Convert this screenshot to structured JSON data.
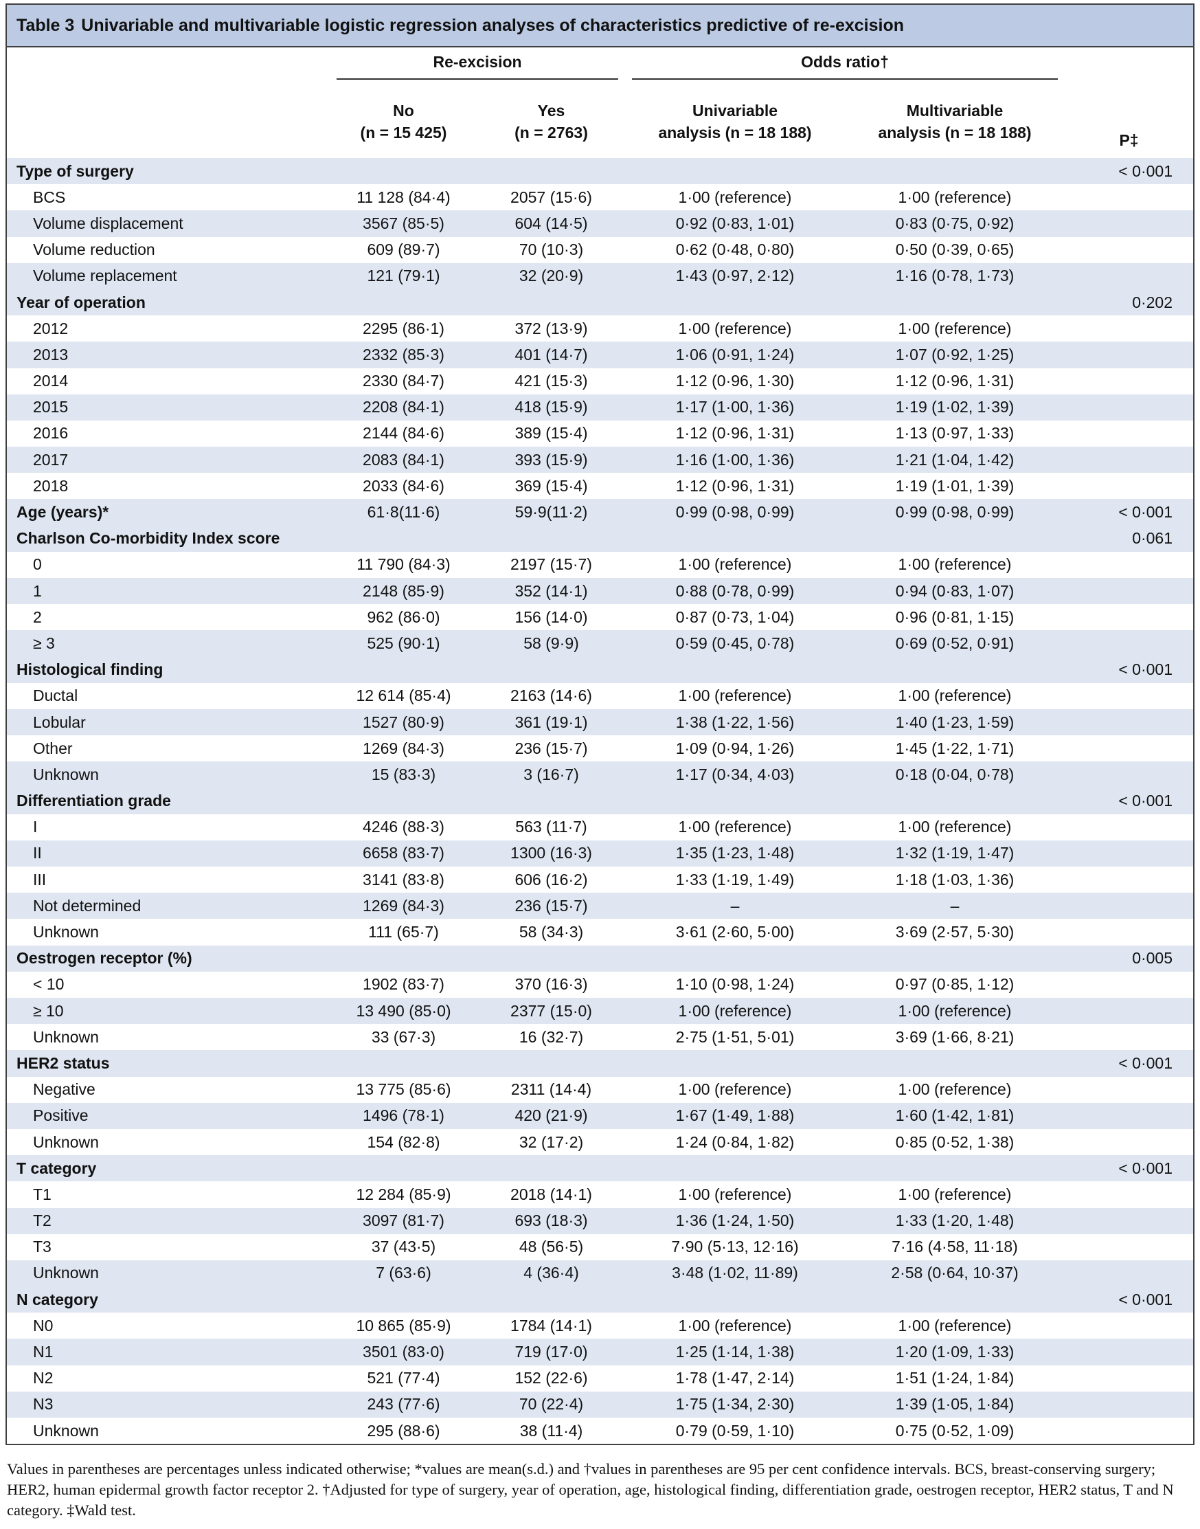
{
  "table": {
    "label": "Table 3",
    "title": "Univariable and multivariable logistic regression analyses of characteristics predictive of re-excision",
    "header": {
      "group1": "Re-excision",
      "group2": "Odds ratio†",
      "col_no": "No",
      "col_no_n": "(n = 15 425)",
      "col_yes": "Yes",
      "col_yes_n": "(n = 2763)",
      "col_uni": "Univariable",
      "col_uni_n": "analysis (n = 18 188)",
      "col_multi": "Multivariable",
      "col_multi_n": "analysis (n = 18 188)",
      "col_p": "P‡"
    },
    "rows": [
      {
        "type": "cat",
        "label": "Type of surgery",
        "no": "",
        "yes": "",
        "uni": "",
        "multi": "",
        "p": "< 0·001"
      },
      {
        "type": "item",
        "label": "BCS",
        "no": "11 128 (84·4)",
        "yes": "2057 (15·6)",
        "uni": "1·00 (reference)",
        "multi": "1·00 (reference)",
        "p": ""
      },
      {
        "type": "item",
        "label": "Volume displacement",
        "no": "3567 (85·5)",
        "yes": "604 (14·5)",
        "uni": "0·92 (0·83, 1·01)",
        "multi": "0·83 (0·75, 0·92)",
        "p": ""
      },
      {
        "type": "item",
        "label": "Volume reduction",
        "no": "609 (89·7)",
        "yes": "70 (10·3)",
        "uni": "0·62 (0·48, 0·80)",
        "multi": "0·50 (0·39, 0·65)",
        "p": ""
      },
      {
        "type": "item",
        "label": "Volume replacement",
        "no": "121 (79·1)",
        "yes": "32 (20·9)",
        "uni": "1·43 (0·97, 2·12)",
        "multi": "1·16 (0·78, 1·73)",
        "p": ""
      },
      {
        "type": "cat",
        "label": "Year of operation",
        "no": "",
        "yes": "",
        "uni": "",
        "multi": "",
        "p": "0·202"
      },
      {
        "type": "item",
        "label": "2012",
        "no": "2295 (86·1)",
        "yes": "372 (13·9)",
        "uni": "1·00 (reference)",
        "multi": "1·00 (reference)",
        "p": ""
      },
      {
        "type": "item",
        "label": "2013",
        "no": "2332 (85·3)",
        "yes": "401 (14·7)",
        "uni": "1·06 (0·91, 1·24)",
        "multi": "1·07 (0·92, 1·25)",
        "p": ""
      },
      {
        "type": "item",
        "label": "2014",
        "no": "2330 (84·7)",
        "yes": "421 (15·3)",
        "uni": "1·12 (0·96, 1·30)",
        "multi": "1·12 (0·96, 1·31)",
        "p": ""
      },
      {
        "type": "item",
        "label": "2015",
        "no": "2208 (84·1)",
        "yes": "418 (15·9)",
        "uni": "1·17 (1·00, 1·36)",
        "multi": "1·19 (1·02, 1·39)",
        "p": ""
      },
      {
        "type": "item",
        "label": "2016",
        "no": "2144 (84·6)",
        "yes": "389 (15·4)",
        "uni": "1·12 (0·96, 1·31)",
        "multi": "1·13 (0·97, 1·33)",
        "p": ""
      },
      {
        "type": "item",
        "label": "2017",
        "no": "2083 (84·1)",
        "yes": "393 (15·9)",
        "uni": "1·16 (1·00, 1·36)",
        "multi": "1·21 (1·04, 1·42)",
        "p": ""
      },
      {
        "type": "item",
        "label": "2018",
        "no": "2033 (84·6)",
        "yes": "369 (15·4)",
        "uni": "1·12 (0·96, 1·31)",
        "multi": "1·19 (1·01, 1·39)",
        "p": ""
      },
      {
        "type": "cat",
        "label": "Age (years)*",
        "no": "61·8(11·6)",
        "yes": "59·9(11·2)",
        "uni": "0·99 (0·98, 0·99)",
        "multi": "0·99 (0·98, 0·99)",
        "p": "< 0·001"
      },
      {
        "type": "cat",
        "label": "Charlson Co-morbidity Index score",
        "no": "",
        "yes": "",
        "uni": "",
        "multi": "",
        "p": "0·061"
      },
      {
        "type": "item",
        "label": "0",
        "no": "11 790 (84·3)",
        "yes": "2197 (15·7)",
        "uni": "1·00 (reference)",
        "multi": "1·00 (reference)",
        "p": ""
      },
      {
        "type": "item",
        "label": "1",
        "no": "2148 (85·9)",
        "yes": "352 (14·1)",
        "uni": "0·88 (0·78, 0·99)",
        "multi": "0·94 (0·83, 1·07)",
        "p": ""
      },
      {
        "type": "item",
        "label": "2",
        "no": "962 (86·0)",
        "yes": "156 (14·0)",
        "uni": "0·87 (0·73, 1·04)",
        "multi": "0·96 (0·81, 1·15)",
        "p": ""
      },
      {
        "type": "item",
        "label": "≥ 3",
        "no": "525 (90·1)",
        "yes": "58 (9·9)",
        "uni": "0·59 (0·45, 0·78)",
        "multi": "0·69 (0·52, 0·91)",
        "p": ""
      },
      {
        "type": "cat",
        "label": "Histological finding",
        "no": "",
        "yes": "",
        "uni": "",
        "multi": "",
        "p": "< 0·001"
      },
      {
        "type": "item",
        "label": "Ductal",
        "no": "12 614 (85·4)",
        "yes": "2163 (14·6)",
        "uni": "1·00 (reference)",
        "multi": "1·00 (reference)",
        "p": ""
      },
      {
        "type": "item",
        "label": "Lobular",
        "no": "1527 (80·9)",
        "yes": "361 (19·1)",
        "uni": "1·38 (1·22, 1·56)",
        "multi": "1·40 (1·23, 1·59)",
        "p": ""
      },
      {
        "type": "item",
        "label": "Other",
        "no": "1269 (84·3)",
        "yes": "236 (15·7)",
        "uni": "1·09 (0·94, 1·26)",
        "multi": "1·45 (1·22, 1·71)",
        "p": ""
      },
      {
        "type": "item",
        "label": "Unknown",
        "no": "15 (83·3)",
        "yes": "3 (16·7)",
        "uni": "1·17 (0·34, 4·03)",
        "multi": "0·18 (0·04, 0·78)",
        "p": ""
      },
      {
        "type": "cat",
        "label": "Differentiation grade",
        "no": "",
        "yes": "",
        "uni": "",
        "multi": "",
        "p": "< 0·001"
      },
      {
        "type": "item",
        "label": "I",
        "no": "4246 (88·3)",
        "yes": "563 (11·7)",
        "uni": "1·00 (reference)",
        "multi": "1·00 (reference)",
        "p": ""
      },
      {
        "type": "item",
        "label": "II",
        "no": "6658 (83·7)",
        "yes": "1300 (16·3)",
        "uni": "1·35 (1·23, 1·48)",
        "multi": "1·32 (1·19, 1·47)",
        "p": ""
      },
      {
        "type": "item",
        "label": "III",
        "no": "3141 (83·8)",
        "yes": "606 (16·2)",
        "uni": "1·33 (1·19, 1·49)",
        "multi": "1·18 (1·03, 1·36)",
        "p": ""
      },
      {
        "type": "item",
        "label": "Not determined",
        "no": "1269 (84·3)",
        "yes": "236 (15·7)",
        "uni": "–",
        "multi": "–",
        "p": ""
      },
      {
        "type": "item",
        "label": "Unknown",
        "no": "111 (65·7)",
        "yes": "58 (34·3)",
        "uni": "3·61 (2·60, 5·00)",
        "multi": "3·69 (2·57, 5·30)",
        "p": ""
      },
      {
        "type": "cat",
        "label": "Oestrogen receptor (%)",
        "no": "",
        "yes": "",
        "uni": "",
        "multi": "",
        "p": "0·005"
      },
      {
        "type": "item",
        "label": "< 10",
        "no": "1902 (83·7)",
        "yes": "370 (16·3)",
        "uni": "1·10 (0·98, 1·24)",
        "multi": "0·97 (0·85, 1·12)",
        "p": ""
      },
      {
        "type": "item",
        "label": "≥ 10",
        "no": "13 490 (85·0)",
        "yes": "2377 (15·0)",
        "uni": "1·00 (reference)",
        "multi": "1·00 (reference)",
        "p": ""
      },
      {
        "type": "item",
        "label": "Unknown",
        "no": "33 (67·3)",
        "yes": "16 (32·7)",
        "uni": "2·75 (1·51, 5·01)",
        "multi": "3·69 (1·66, 8·21)",
        "p": ""
      },
      {
        "type": "cat",
        "label": "HER2 status",
        "no": "",
        "yes": "",
        "uni": "",
        "multi": "",
        "p": "< 0·001"
      },
      {
        "type": "item",
        "label": "Negative",
        "no": "13 775 (85·6)",
        "yes": "2311 (14·4)",
        "uni": "1·00 (reference)",
        "multi": "1·00 (reference)",
        "p": ""
      },
      {
        "type": "item",
        "label": "Positive",
        "no": "1496 (78·1)",
        "yes": "420 (21·9)",
        "uni": "1·67 (1·49, 1·88)",
        "multi": "1·60 (1·42, 1·81)",
        "p": ""
      },
      {
        "type": "item",
        "label": "Unknown",
        "no": "154 (82·8)",
        "yes": "32 (17·2)",
        "uni": "1·24 (0·84, 1·82)",
        "multi": "0·85 (0·52, 1·38)",
        "p": ""
      },
      {
        "type": "cat",
        "label": "T category",
        "no": "",
        "yes": "",
        "uni": "",
        "multi": "",
        "p": "< 0·001"
      },
      {
        "type": "item",
        "label": "T1",
        "no": "12 284 (85·9)",
        "yes": "2018 (14·1)",
        "uni": "1·00 (reference)",
        "multi": "1·00 (reference)",
        "p": ""
      },
      {
        "type": "item",
        "label": "T2",
        "no": "3097 (81·7)",
        "yes": "693 (18·3)",
        "uni": "1·36 (1·24, 1·50)",
        "multi": "1·33 (1·20, 1·48)",
        "p": ""
      },
      {
        "type": "item",
        "label": "T3",
        "no": "37 (43·5)",
        "yes": "48 (56·5)",
        "uni": "7·90 (5·13, 12·16)",
        "multi": "7·16 (4·58, 11·18)",
        "p": ""
      },
      {
        "type": "item",
        "label": "Unknown",
        "no": "7 (63·6)",
        "yes": "4 (36·4)",
        "uni": "3·48 (1·02, 11·89)",
        "multi": "2·58 (0·64, 10·37)",
        "p": ""
      },
      {
        "type": "cat",
        "label": "N category",
        "no": "",
        "yes": "",
        "uni": "",
        "multi": "",
        "p": "< 0·001"
      },
      {
        "type": "item",
        "label": "N0",
        "no": "10 865 (85·9)",
        "yes": "1784 (14·1)",
        "uni": "1·00 (reference)",
        "multi": "1·00 (reference)",
        "p": ""
      },
      {
        "type": "item",
        "label": "N1",
        "no": "3501 (83·0)",
        "yes": "719 (17·0)",
        "uni": "1·25 (1·14, 1·38)",
        "multi": "1·20 (1·09, 1·33)",
        "p": ""
      },
      {
        "type": "item",
        "label": "N2",
        "no": "521 (77·4)",
        "yes": "152 (22·6)",
        "uni": "1·78 (1·47, 2·14)",
        "multi": "1·51 (1·24, 1·84)",
        "p": ""
      },
      {
        "type": "item",
        "label": "N3",
        "no": "243 (77·6)",
        "yes": "70 (22·4)",
        "uni": "1·75 (1·34, 2·30)",
        "multi": "1·39 (1·05, 1·84)",
        "p": ""
      },
      {
        "type": "item",
        "label": "Unknown",
        "no": "295 (88·6)",
        "yes": "38 (11·4)",
        "uni": "0·79 (0·59, 1·10)",
        "multi": "0·75 (0·52, 1·09)",
        "p": ""
      }
    ]
  },
  "footnote": "Values in parentheses are percentages unless indicated otherwise; *values are mean(s.d.) and †values in parentheses are 95 per cent confidence intervals. BCS, breast-conserving surgery; HER2, human epidermal growth factor receptor 2. †Adjusted for type of surgery, year of operation, age, histological finding, differentiation grade, oestrogen receptor, HER2 status, T and N category. ‡Wald test.",
  "colors": {
    "caption_bg": "#bccbe3",
    "row_shade": "#dfe6f1",
    "border": "#404040"
  }
}
